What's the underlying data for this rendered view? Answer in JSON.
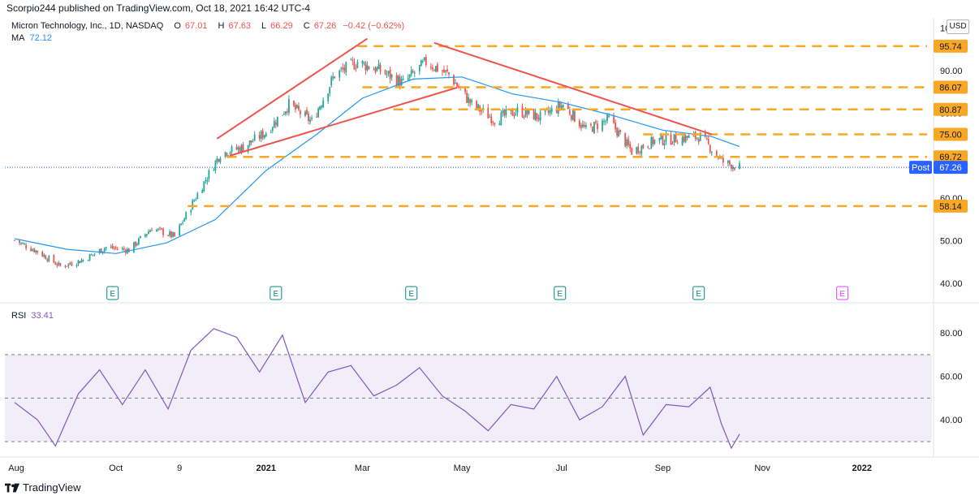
{
  "publisher_line": "Scorpio244 published on TradingView.com, Oct 18, 2021 16:42 UTC-4",
  "legend": {
    "symbol": "Micron Technology, Inc., 1D, NASDAQ",
    "open_label": "O",
    "open": "67.01",
    "high_label": "H",
    "high": "67.63",
    "low_label": "L",
    "low": "66.29",
    "close_label": "C",
    "close": "67.26",
    "change": "−0.42 (−0.62%)",
    "ma_label": "MA",
    "ma_value": "72.12",
    "rsi_label": "RSI",
    "rsi_value": "33.41"
  },
  "currency": "USD",
  "footer_brand": "TradingView",
  "colors": {
    "up": "#26a69a",
    "down": "#ef5350",
    "ma": "#2196f3",
    "rsi": "#7e57c2",
    "level": "#f9a825",
    "trendline": "#ef5350",
    "post_badge": "#2962ff",
    "level_badge": "#f9a825"
  },
  "chart_data": [
    {
      "type": "line",
      "description": "Candlestick price chart, 1D, with 50-day moving average",
      "x": [
        "Aug",
        "Oct",
        "9",
        "2021",
        "Mar",
        "May",
        "Jul",
        "Sep",
        "Nov",
        "2022"
      ],
      "y_ticks": [
        "40.00",
        "50.00",
        "60.00",
        "70.00",
        "80.00",
        "90.00",
        "100.00"
      ],
      "ylim": [
        36,
        102
      ],
      "close_series": [
        {
          "date": "2020-07-31",
          "close": 50.1
        },
        {
          "date": "2020-08-14",
          "close": 47.5
        },
        {
          "date": "2020-08-28",
          "close": 44.0
        },
        {
          "date": "2020-09-11",
          "close": 45.5
        },
        {
          "date": "2020-09-25",
          "close": 48.5
        },
        {
          "date": "2020-10-09",
          "close": 47.8
        },
        {
          "date": "2020-10-23",
          "close": 53.0
        },
        {
          "date": "2020-11-06",
          "close": 51.0
        },
        {
          "date": "2020-11-20",
          "close": 61.0
        },
        {
          "date": "2020-12-04",
          "close": 70.5
        },
        {
          "date": "2020-12-18",
          "close": 72.0
        },
        {
          "date": "2021-01-01",
          "close": 75.5
        },
        {
          "date": "2021-01-15",
          "close": 82.0
        },
        {
          "date": "2021-01-29",
          "close": 78.0
        },
        {
          "date": "2021-02-12",
          "close": 89.0
        },
        {
          "date": "2021-02-26",
          "close": 92.0
        },
        {
          "date": "2021-03-12",
          "close": 90.0
        },
        {
          "date": "2021-03-26",
          "close": 87.0
        },
        {
          "date": "2021-04-09",
          "close": 92.0
        },
        {
          "date": "2021-04-23",
          "close": 89.0
        },
        {
          "date": "2021-05-07",
          "close": 82.0
        },
        {
          "date": "2021-05-21",
          "close": 78.5
        },
        {
          "date": "2021-06-04",
          "close": 80.5
        },
        {
          "date": "2021-06-18",
          "close": 79.0
        },
        {
          "date": "2021-07-02",
          "close": 82.0
        },
        {
          "date": "2021-07-16",
          "close": 76.0
        },
        {
          "date": "2021-07-30",
          "close": 78.5
        },
        {
          "date": "2021-08-13",
          "close": 71.0
        },
        {
          "date": "2021-08-27",
          "close": 73.5
        },
        {
          "date": "2021-09-10",
          "close": 74.0
        },
        {
          "date": "2021-09-24",
          "close": 74.5
        },
        {
          "date": "2021-10-08",
          "close": 68.5
        },
        {
          "date": "2021-10-18",
          "close": 67.26
        }
      ],
      "ma_series": [
        {
          "date": "2020-07-31",
          "value": 50.5
        },
        {
          "date": "2020-09-01",
          "value": 48.0
        },
        {
          "date": "2020-10-01",
          "value": 47.0
        },
        {
          "date": "2020-11-01",
          "value": 49.5
        },
        {
          "date": "2020-12-01",
          "value": 55.0
        },
        {
          "date": "2021-01-01",
          "value": 66.5
        },
        {
          "date": "2021-02-01",
          "value": 75.0
        },
        {
          "date": "2021-03-01",
          "value": 83.5
        },
        {
          "date": "2021-04-01",
          "value": 88.0
        },
        {
          "date": "2021-05-01",
          "value": 88.5
        },
        {
          "date": "2021-06-01",
          "value": 84.5
        },
        {
          "date": "2021-07-01",
          "value": 82.5
        },
        {
          "date": "2021-08-01",
          "value": 79.5
        },
        {
          "date": "2021-09-01",
          "value": 76.0
        },
        {
          "date": "2021-10-01",
          "value": 74.5
        },
        {
          "date": "2021-10-18",
          "value": 72.12
        }
      ],
      "horizontal_levels": [
        "95.74",
        "86.07",
        "80.87",
        "75.00",
        "69.72",
        "58.14"
      ],
      "trendlines": [
        {
          "from": {
            "date": "2020-12-02",
            "price": 74.0
          },
          "to": {
            "date": "2021-03-04",
            "price": 97.5
          }
        },
        {
          "from": {
            "date": "2020-12-10",
            "price": 70.0
          },
          "to": {
            "date": "2021-04-28",
            "price": 86.0
          }
        },
        {
          "from": {
            "date": "2021-04-14",
            "price": 96.5
          },
          "to": {
            "date": "2021-10-01",
            "price": 75.0
          }
        }
      ],
      "last_price_label": "Post",
      "last_price": "67.26",
      "earnings_markers": [
        {
          "date": "2020-09-29",
          "label": "E"
        },
        {
          "date": "2021-01-07",
          "label": "E"
        },
        {
          "date": "2021-03-31",
          "label": "E"
        },
        {
          "date": "2021-06-30",
          "label": "E"
        },
        {
          "date": "2021-09-23",
          "label": "E"
        },
        {
          "date": "2021-12-20",
          "label": "E"
        }
      ]
    },
    {
      "type": "line",
      "series_name": "RSI",
      "y_ticks": [
        "40.00",
        "60.00",
        "80.00"
      ],
      "ylim": [
        24,
        92
      ],
      "bands": [
        30,
        50,
        70
      ],
      "rsi_series": [
        {
          "date": "2020-07-31",
          "value": 48
        },
        {
          "date": "2020-08-14",
          "value": 40
        },
        {
          "date": "2020-08-25",
          "value": 28
        },
        {
          "date": "2020-09-08",
          "value": 52
        },
        {
          "date": "2020-09-21",
          "value": 63
        },
        {
          "date": "2020-10-05",
          "value": 47
        },
        {
          "date": "2020-10-19",
          "value": 63
        },
        {
          "date": "2020-11-02",
          "value": 45
        },
        {
          "date": "2020-11-16",
          "value": 72
        },
        {
          "date": "2020-11-30",
          "value": 82
        },
        {
          "date": "2020-12-14",
          "value": 78
        },
        {
          "date": "2020-12-28",
          "value": 62
        },
        {
          "date": "2021-01-11",
          "value": 79
        },
        {
          "date": "2021-01-25",
          "value": 48
        },
        {
          "date": "2021-02-08",
          "value": 62
        },
        {
          "date": "2021-02-22",
          "value": 65
        },
        {
          "date": "2021-03-08",
          "value": 51
        },
        {
          "date": "2021-03-22",
          "value": 56
        },
        {
          "date": "2021-04-05",
          "value": 64
        },
        {
          "date": "2021-04-19",
          "value": 51
        },
        {
          "date": "2021-05-03",
          "value": 44
        },
        {
          "date": "2021-05-17",
          "value": 35
        },
        {
          "date": "2021-05-31",
          "value": 47
        },
        {
          "date": "2021-06-14",
          "value": 45
        },
        {
          "date": "2021-06-28",
          "value": 60
        },
        {
          "date": "2021-07-12",
          "value": 40
        },
        {
          "date": "2021-07-26",
          "value": 46
        },
        {
          "date": "2021-08-09",
          "value": 60
        },
        {
          "date": "2021-08-20",
          "value": 33
        },
        {
          "date": "2021-09-03",
          "value": 47
        },
        {
          "date": "2021-09-17",
          "value": 46
        },
        {
          "date": "2021-09-30",
          "value": 55
        },
        {
          "date": "2021-10-07",
          "value": 38
        },
        {
          "date": "2021-10-13",
          "value": 27
        },
        {
          "date": "2021-10-18",
          "value": 33.41
        }
      ]
    }
  ]
}
